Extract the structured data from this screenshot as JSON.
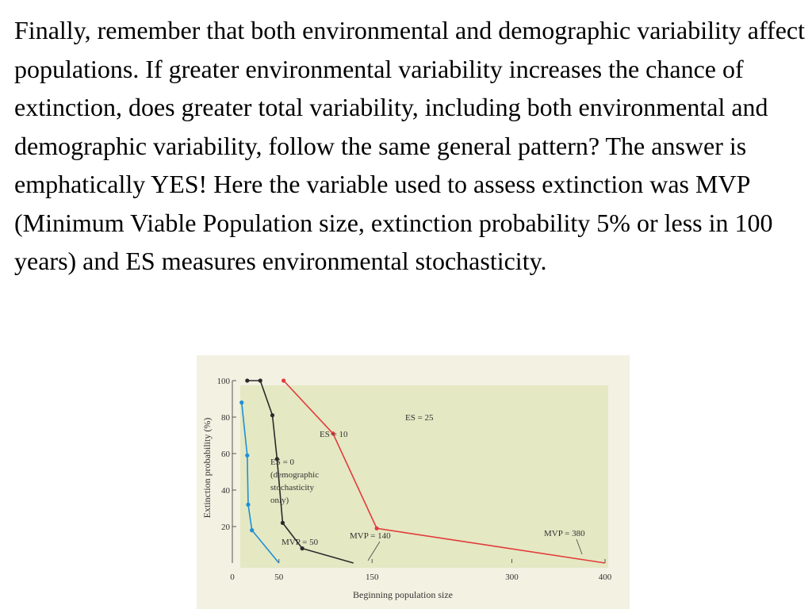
{
  "paragraph": "Finally, remember that both environmental and demographic variability affect populations. If greater environmental variability increases the chance of extinction, does greater total variability, including both environmental and demographic variability, follow the same general pattern? The answer is emphatically YES! Here the variable used to assess extinction was MVP (Minimum Viable Population size, extinction probability 5% or less in 100 years) and ES measures environmental stochasticity.",
  "chart_data": {
    "type": "line",
    "xlabel": "Beginning population size",
    "ylabel": "Extinction probability (%)",
    "xlim": [
      0,
      400
    ],
    "ylim": [
      0,
      100
    ],
    "x_ticks": [
      "0",
      "50",
      "150",
      "300",
      "400"
    ],
    "y_ticks": [
      "100",
      "80",
      "60",
      "40",
      "20"
    ],
    "grid": false,
    "series": [
      {
        "name": "ES = 0 (demographic stochasticity only)",
        "color": "#1f8fd6",
        "points": [
          [
            10,
            88
          ],
          [
            16,
            59
          ],
          [
            17,
            32
          ],
          [
            21,
            18
          ],
          [
            50,
            0
          ]
        ],
        "labels": [
          "ES = 0",
          "(demographic",
          "stochasticity",
          "only)"
        ],
        "mvp_label": "MVP = 50"
      },
      {
        "name": "ES = 10",
        "color": "#2a2a2a",
        "points": [
          [
            16,
            100
          ],
          [
            30,
            100
          ],
          [
            43,
            81
          ],
          [
            48,
            57
          ],
          [
            54,
            22
          ],
          [
            75,
            8
          ],
          [
            130,
            0
          ]
        ],
        "labels": [
          "ES = 10"
        ],
        "mvp_label": "MVP = 140"
      },
      {
        "name": "ES = 25",
        "color": "#e23b3b",
        "points": [
          [
            55,
            100
          ],
          [
            108,
            71
          ],
          [
            155,
            19
          ],
          [
            400,
            0
          ]
        ],
        "labels": [
          "ES = 25"
        ],
        "mvp_label": "MVP = 380"
      }
    ]
  }
}
